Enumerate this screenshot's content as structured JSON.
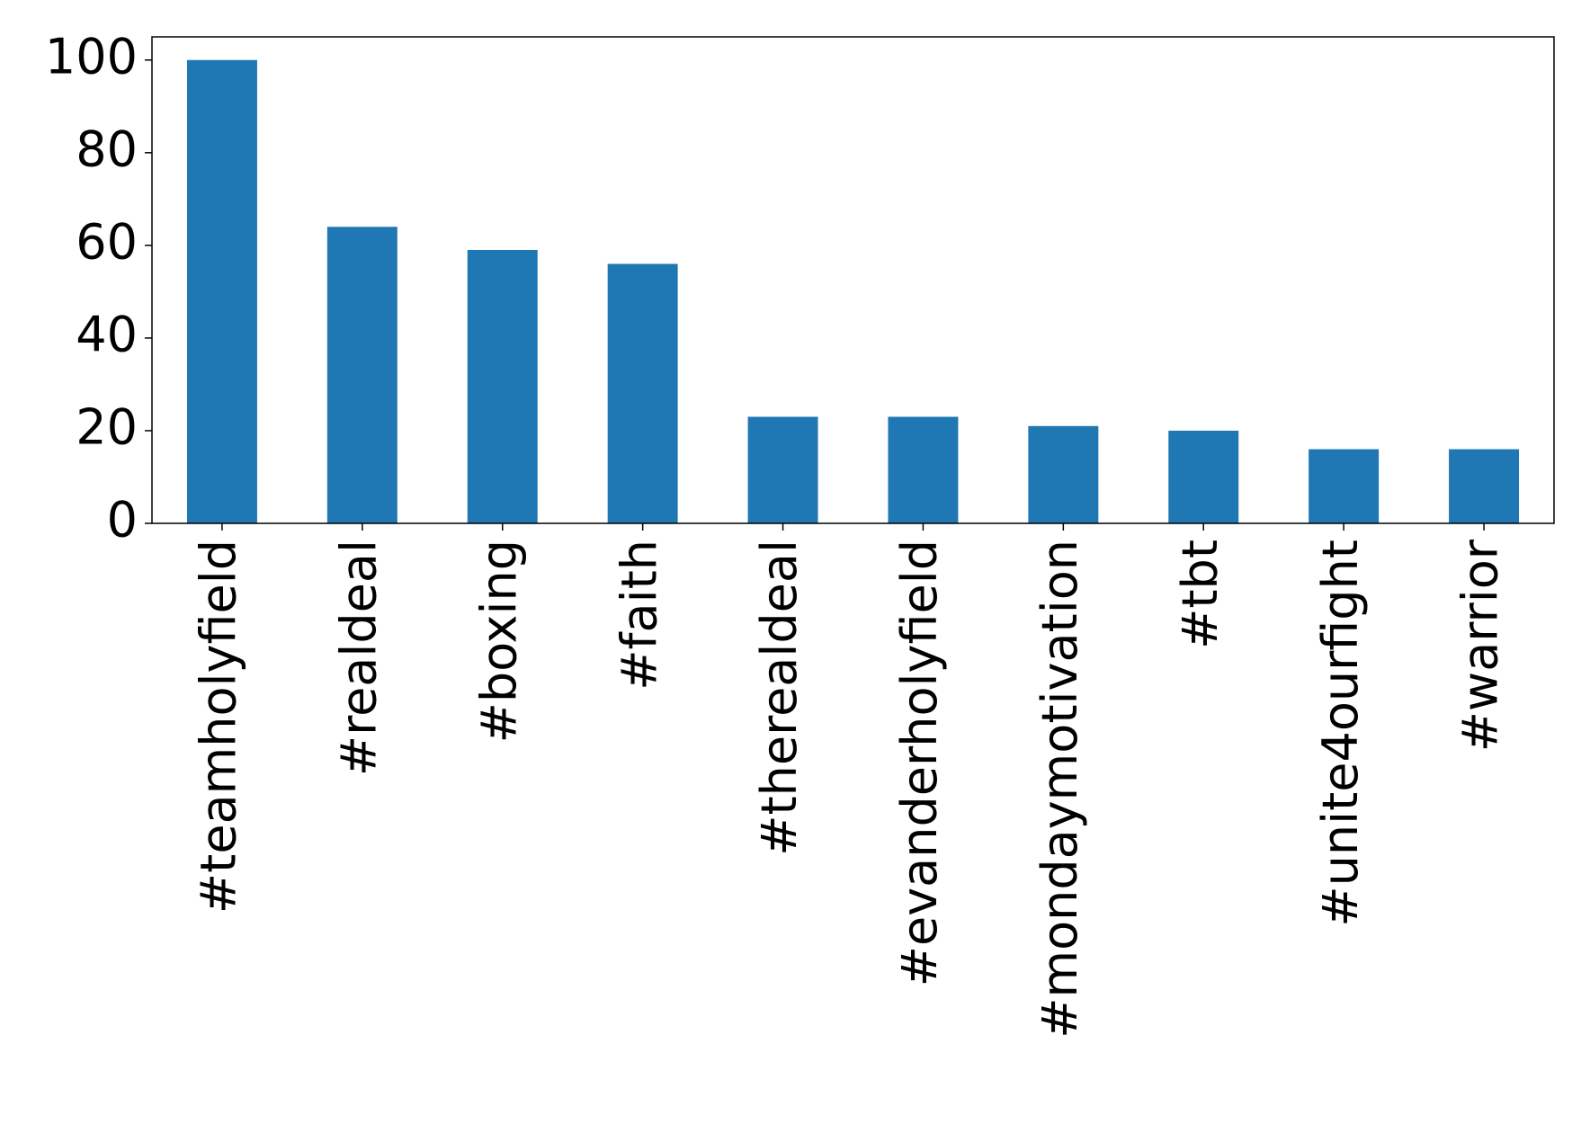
{
  "chart_data": {
    "type": "bar",
    "categories": [
      "#teamholyfield",
      "#realdeal",
      "#boxing",
      "#faith",
      "#therealdeal",
      "#evanderholyfield",
      "#mondaymotivation",
      "#tbt",
      "#unite4ourfight",
      "#warrior"
    ],
    "values": [
      100,
      64,
      59,
      56,
      23,
      23,
      21,
      20,
      16,
      16
    ],
    "color": "#1f77b4",
    "ylim": [
      0,
      105
    ],
    "yticks": [
      0,
      20,
      40,
      60,
      80,
      100
    ],
    "grid": false
  }
}
